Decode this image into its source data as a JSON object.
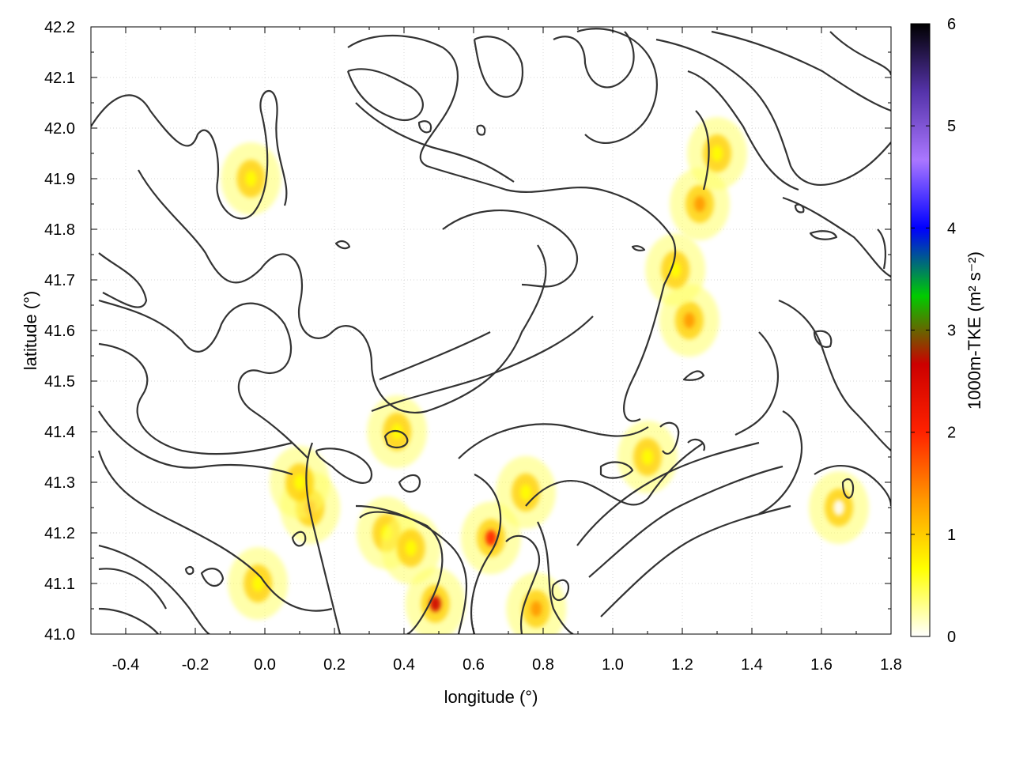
{
  "chart_data": {
    "type": "heatmap",
    "xlabel": "longitude (°)",
    "ylabel": "latitude (°)",
    "xlim": [
      -0.5,
      1.8
    ],
    "ylim": [
      41.0,
      42.2
    ],
    "x_ticks": [
      "-0.4",
      "-0.2",
      "0.0",
      "0.2",
      "0.4",
      "0.6",
      "0.8",
      "1.0",
      "1.2",
      "1.4",
      "1.6",
      "1.8"
    ],
    "y_ticks": [
      "41.0",
      "41.1",
      "41.2",
      "41.3",
      "41.4",
      "41.5",
      "41.6",
      "41.7",
      "41.8",
      "41.9",
      "42.0",
      "42.1",
      "42.2"
    ],
    "grid": true,
    "colorbar": {
      "label": "1000m-TKE (m² s⁻²)",
      "range": [
        0,
        6
      ],
      "ticks": [
        "0",
        "1",
        "2",
        "3",
        "4",
        "5",
        "6"
      ],
      "colors": [
        "#ffffff",
        "#ffff00",
        "#ff9900",
        "#ff2200",
        "#cc0000",
        "#00cc00",
        "#0000ff",
        "#aa77ff",
        "#5533aa",
        "#000000"
      ]
    },
    "hotspots": [
      {
        "lon": 1.25,
        "lat": 41.85,
        "value": 1.0
      },
      {
        "lon": 1.3,
        "lat": 41.95,
        "value": 0.9
      },
      {
        "lon": 1.22,
        "lat": 41.62,
        "value": 1.1
      },
      {
        "lon": 1.18,
        "lat": 41.72,
        "value": 0.7
      },
      {
        "lon": 0.13,
        "lat": 41.25,
        "value": 1.0
      },
      {
        "lon": 0.1,
        "lat": 41.3,
        "value": 0.8
      },
      {
        "lon": 0.35,
        "lat": 41.2,
        "value": 0.9
      },
      {
        "lon": 0.42,
        "lat": 41.17,
        "value": 0.8
      },
      {
        "lon": 0.78,
        "lat": 41.05,
        "value": 1.5
      },
      {
        "lon": 0.65,
        "lat": 41.19,
        "value": 1.8
      },
      {
        "lon": 0.49,
        "lat": 41.06,
        "value": 2.8
      },
      {
        "lon": -0.04,
        "lat": 41.9,
        "value": 0.6
      },
      {
        "lon": 0.38,
        "lat": 41.4,
        "value": 0.7
      },
      {
        "lon": 1.1,
        "lat": 41.35,
        "value": 0.5
      },
      {
        "lon": 0.75,
        "lat": 41.28,
        "value": 0.5
      },
      {
        "lon": -0.02,
        "lat": 41.1,
        "value": 0.5
      },
      {
        "lon": 1.65,
        "lat": 41.25,
        "value": 0.3
      }
    ]
  }
}
